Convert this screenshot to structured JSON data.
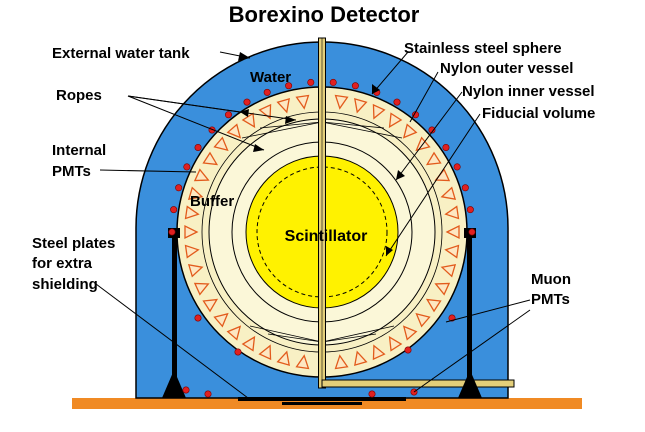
{
  "title": "Borexino Detector",
  "labels": {
    "external_water_tank": "External water tank",
    "water": "Water",
    "ropes": "Ropes",
    "internal_pmts_1": "Internal",
    "internal_pmts_2": "PMTs",
    "buffer": "Buffer",
    "steel_plates_1": "Steel plates",
    "steel_plates_2": "for extra",
    "steel_plates_3": "shielding",
    "stainless_steel_sphere": "Stainless steel sphere",
    "nylon_outer_vessel": "Nylon outer vessel",
    "nylon_inner_vessel": "Nylon inner vessel",
    "fiducial_volume": "Fiducial volume",
    "scintillator": "Scintillator",
    "muon_pmts_1": "Muon",
    "muon_pmts_2": "PMTs"
  },
  "colors": {
    "water_tank": "#3a8fdc",
    "sphere": "#f8f0c4",
    "buffer": "#fbf7d8",
    "scintillator": "#fff200",
    "floor": "#f08a24",
    "pmt": "#e25b1c",
    "muon_pmt": "#e02020",
    "pipe": "#e4cf7a"
  }
}
